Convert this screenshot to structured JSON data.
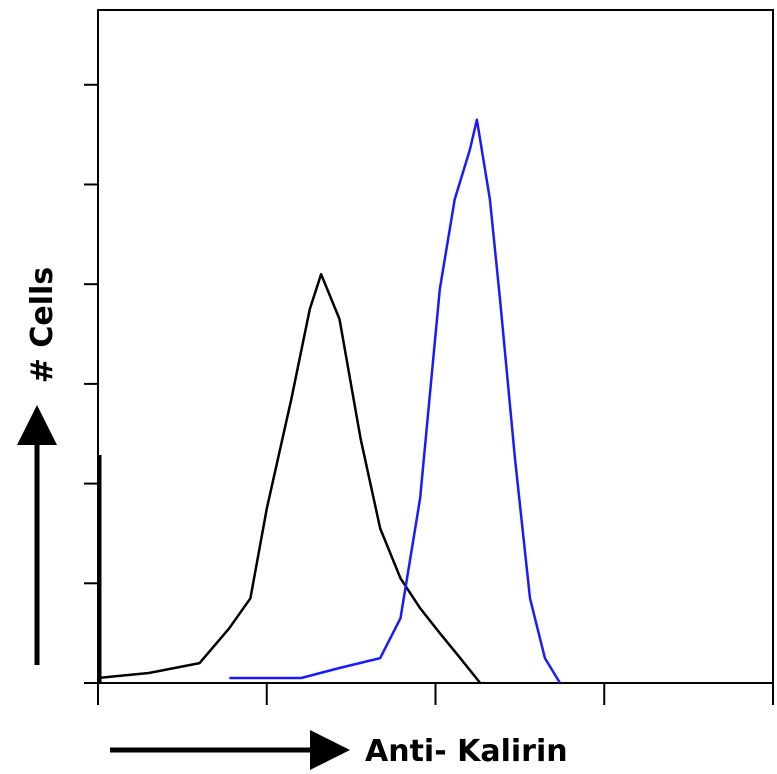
{
  "chart_data": {
    "type": "line",
    "xlabel": "Anti- Kalirin",
    "ylabel": "# Cells",
    "xscale": "log",
    "xlim": [
      1,
      10000
    ],
    "xticks": [
      1,
      10,
      100,
      1000,
      10000
    ],
    "ylim": [
      0,
      135
    ],
    "yticks": [
      0,
      20,
      40,
      60,
      80,
      100,
      120
    ],
    "series": [
      {
        "color": "#000000",
        "x": [
          1,
          2,
          4,
          6,
          8,
          10,
          14,
          18,
          21,
          27,
          36,
          47,
          62,
          81,
          106,
          140,
          184
        ],
        "values": [
          1,
          2,
          4,
          11,
          17,
          35,
          57,
          75,
          82,
          73,
          49,
          31,
          21,
          15,
          10,
          5,
          0
        ]
      },
      {
        "color": "#1a1aff",
        "x": [
          6,
          16,
          27,
          47,
          62,
          81,
          106,
          130,
          160,
          176,
          210,
          241,
          296,
          363,
          445,
          547
        ],
        "values": [
          1,
          1,
          3,
          5,
          13,
          37,
          79,
          97,
          107,
          113,
          97,
          77,
          45,
          17,
          5,
          0
        ]
      }
    ]
  }
}
